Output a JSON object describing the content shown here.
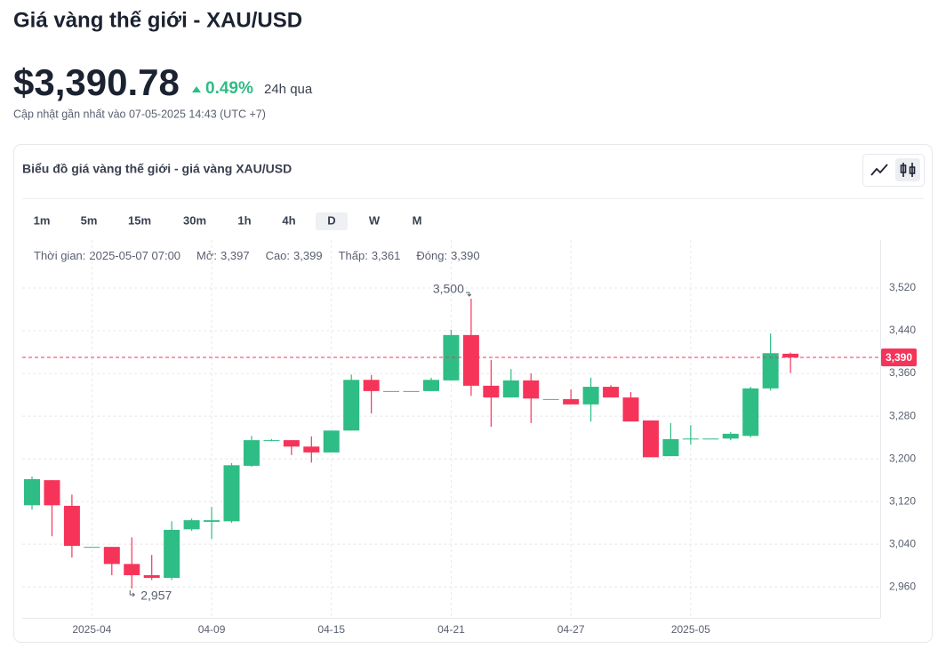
{
  "header": {
    "title": "Giá vàng thế giới - XAU/USD",
    "price": "$3,390.78",
    "change": "0.49%",
    "change_period": "24h qua",
    "updated": "Cập nhật gần nhất vào 07-05-2025 14:43 (UTC +7)"
  },
  "card": {
    "title": "Biểu đồ giá vàng thế giới - giá vàng XAU/USD",
    "timeframes": [
      "1m",
      "5m",
      "15m",
      "30m",
      "1h",
      "4h",
      "D",
      "W",
      "M"
    ],
    "selected": "D",
    "info": [
      {
        "label": "Thời gian:",
        "value": "2025-05-07 07:00"
      },
      {
        "label": "Mở:",
        "value": "3,397"
      },
      {
        "label": "Cao:",
        "value": "3,399"
      },
      {
        "label": "Thấp:",
        "value": "3,361"
      },
      {
        "label": "Đóng:",
        "value": "3,390"
      }
    ]
  },
  "chart_data": {
    "type": "candlestick",
    "categories": [
      null,
      null,
      null,
      "2025-04",
      null,
      null,
      null,
      null,
      null,
      "04-09",
      null,
      null,
      null,
      null,
      null,
      "04-15",
      null,
      null,
      null,
      null,
      null,
      "04-21",
      null,
      null,
      null,
      null,
      null,
      "04-27",
      null,
      null,
      null,
      null,
      null,
      "2025-05",
      null,
      null,
      null,
      null,
      null
    ],
    "open": [
      3113,
      3160,
      3112,
      3035,
      3035,
      3003,
      2982,
      2977,
      3068,
      3082,
      3083,
      3187,
      3235,
      3235,
      3223,
      3212,
      3253,
      3348,
      3327,
      3327,
      3327,
      3347,
      3432,
      3337,
      3315,
      3347,
      3312,
      3312,
      3302,
      3335,
      3315,
      3272,
      3205,
      3238,
      3238,
      3238,
      3243,
      3332,
      3397
    ],
    "high": [
      3167,
      3160,
      3133,
      3035,
      3035,
      3053,
      3020,
      3083,
      3088,
      3110,
      3192,
      3243,
      3237,
      3235,
      3242,
      3253,
      3358,
      3357,
      3327,
      3327,
      3352,
      3442,
      3500,
      3385,
      3368,
      3360,
      3312,
      3330,
      3352,
      3338,
      3325,
      3272,
      3267,
      3263,
      3238,
      3250,
      3335,
      3435,
      3399
    ],
    "low": [
      3105,
      3055,
      3015,
      3035,
      2982,
      2957,
      2973,
      2973,
      3065,
      3050,
      3080,
      3185,
      3233,
      3207,
      3193,
      3212,
      3253,
      3285,
      3327,
      3327,
      3327,
      3347,
      3318,
      3260,
      3315,
      3267,
      3312,
      3302,
      3270,
      3315,
      3270,
      3203,
      3205,
      3227,
      3238,
      3235,
      3240,
      3328,
      3361
    ],
    "close": [
      3162,
      3113,
      3037,
      3035,
      3003,
      2982,
      2977,
      3067,
      3085,
      3085,
      3188,
      3235,
      3235,
      3223,
      3212,
      3253,
      3348,
      3327,
      3327,
      3327,
      3348,
      3432,
      3337,
      3315,
      3347,
      3313,
      3312,
      3302,
      3335,
      3315,
      3270,
      3203,
      3237,
      3238,
      3238,
      3247,
      3332,
      3398,
      3390
    ],
    "up_color": "#2ebd85",
    "down_color": "#f6345a",
    "ylim": [
      2902,
      3610
    ],
    "yticks": [
      {
        "value": 2960,
        "label": "2,960"
      },
      {
        "value": 3040,
        "label": "3,040"
      },
      {
        "value": 3120,
        "label": "3,120"
      },
      {
        "value": 3200,
        "label": "3,200"
      },
      {
        "value": 3280,
        "label": "3,280"
      },
      {
        "value": 3360,
        "label": "3,360"
      },
      {
        "value": 3440,
        "label": "3,440"
      },
      {
        "value": 3520,
        "label": "3,520"
      }
    ],
    "grid": true,
    "last_price": {
      "value": 3390,
      "label": "3,390"
    },
    "max_label": "3,500",
    "min_label": "2,957"
  }
}
